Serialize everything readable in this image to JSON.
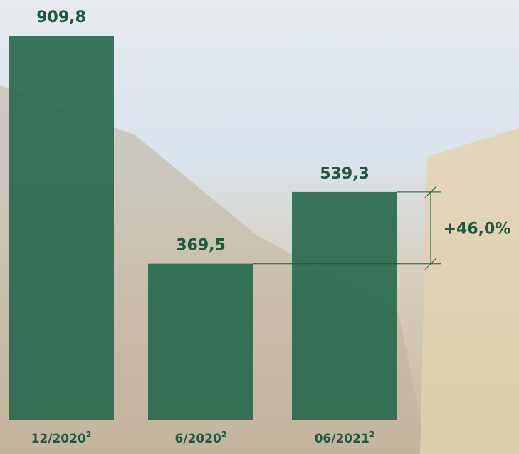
{
  "chart_data": {
    "type": "bar",
    "categories": [
      "12/2020",
      "6/2020",
      "06/2021"
    ],
    "category_notes": [
      "2",
      "2",
      "2"
    ],
    "values": [
      909.8,
      369.5,
      539.3
    ],
    "value_labels": [
      "909,8",
      "369,5",
      "539,3"
    ],
    "color": "#2a6b50",
    "annotations": [
      {
        "text": "+46,0%",
        "from": 1,
        "to": 2
      }
    ]
  }
}
